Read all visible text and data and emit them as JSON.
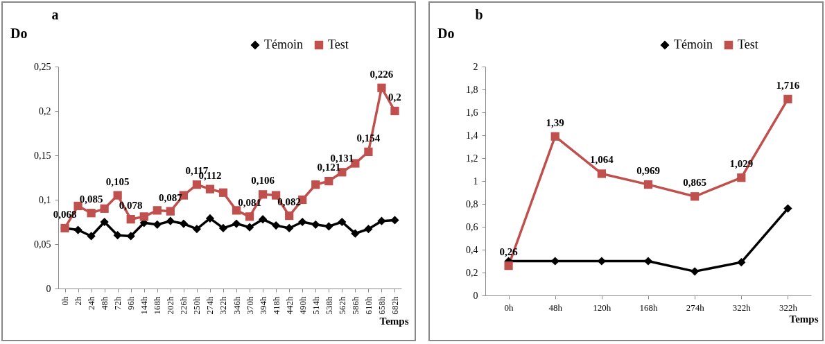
{
  "chart_data": [
    {
      "type": "line",
      "title": "a",
      "xlabel": "Temps",
      "ylabel": "Do",
      "categories": [
        "0h",
        "2h",
        "24h",
        "48h",
        "72h",
        "96h",
        "144h",
        "168h",
        "202h",
        "226h",
        "250h",
        "274h",
        "322h",
        "346h",
        "370h",
        "394h",
        "418h",
        "442h",
        "490h",
        "514h",
        "538h",
        "562h",
        "586h",
        "610h",
        "658h",
        "682h"
      ],
      "ylim": [
        0,
        0.25
      ],
      "yticks": [
        {
          "value": 0,
          "label": "0"
        },
        {
          "value": 0.05,
          "label": "0,05"
        },
        {
          "value": 0.1,
          "label": "0,1"
        },
        {
          "value": 0.15,
          "label": "0,15"
        },
        {
          "value": 0.2,
          "label": "0,2"
        },
        {
          "value": 0.25,
          "label": "0,25"
        }
      ],
      "legend": "top right",
      "series": [
        {
          "name": "Témoin",
          "color": "#000000",
          "marker": "diamond",
          "values": [
            0.068,
            0.066,
            0.059,
            0.075,
            0.06,
            0.059,
            0.074,
            0.072,
            0.076,
            0.073,
            0.067,
            0.079,
            0.068,
            0.073,
            0.069,
            0.078,
            0.071,
            0.068,
            0.075,
            0.072,
            0.07,
            0.075,
            0.062,
            0.067,
            0.076,
            0.077
          ]
        },
        {
          "name": "Test",
          "color": "#c0504d",
          "marker": "square",
          "values": [
            0.068,
            0.093,
            0.085,
            0.09,
            0.105,
            0.078,
            0.081,
            0.088,
            0.087,
            0.105,
            0.117,
            0.112,
            0.108,
            0.088,
            0.081,
            0.106,
            0.105,
            0.082,
            0.1,
            0.117,
            0.121,
            0.131,
            0.141,
            0.154,
            0.226,
            0.2
          ],
          "value_labels": [
            "0,068",
            null,
            "0,085",
            null,
            "0,105",
            "0,078",
            null,
            null,
            "0,087",
            null,
            "0,117",
            "0,112",
            null,
            null,
            "0,081",
            "0,106",
            null,
            "0,082",
            null,
            null,
            "0,121",
            "0,131",
            null,
            "0,154",
            "0,226",
            "0,2"
          ]
        }
      ]
    },
    {
      "type": "line",
      "title": "b",
      "xlabel": "Temps",
      "ylabel": "Do",
      "categories": [
        "0h",
        "48h",
        "120h",
        "168h",
        "274h",
        "322h",
        "322h"
      ],
      "ylim": [
        0,
        2
      ],
      "yticks": [
        {
          "value": 0,
          "label": "0"
        },
        {
          "value": 0.2,
          "label": "0,2"
        },
        {
          "value": 0.4,
          "label": "0,4"
        },
        {
          "value": 0.6,
          "label": "0,6"
        },
        {
          "value": 0.8,
          "label": "0,8"
        },
        {
          "value": 1,
          "label": "1"
        },
        {
          "value": 1.2,
          "label": "1,2"
        },
        {
          "value": 1.4,
          "label": "1,4"
        },
        {
          "value": 1.6,
          "label": "1,6"
        },
        {
          "value": 1.8,
          "label": "1,8"
        },
        {
          "value": 2,
          "label": "2"
        }
      ],
      "legend": "top right",
      "series": [
        {
          "name": "Témoin",
          "color": "#000000",
          "marker": "diamond",
          "values": [
            0.3,
            0.3,
            0.3,
            0.3,
            0.21,
            0.29,
            0.76
          ]
        },
        {
          "name": "Test",
          "color": "#c0504d",
          "marker": "square",
          "values": [
            0.26,
            1.39,
            1.064,
            0.969,
            0.865,
            1.029,
            1.716
          ],
          "value_labels": [
            "0,26",
            "1,39",
            "1,064",
            "0,969",
            "0,865",
            "1,029",
            "1,716"
          ]
        }
      ]
    }
  ]
}
